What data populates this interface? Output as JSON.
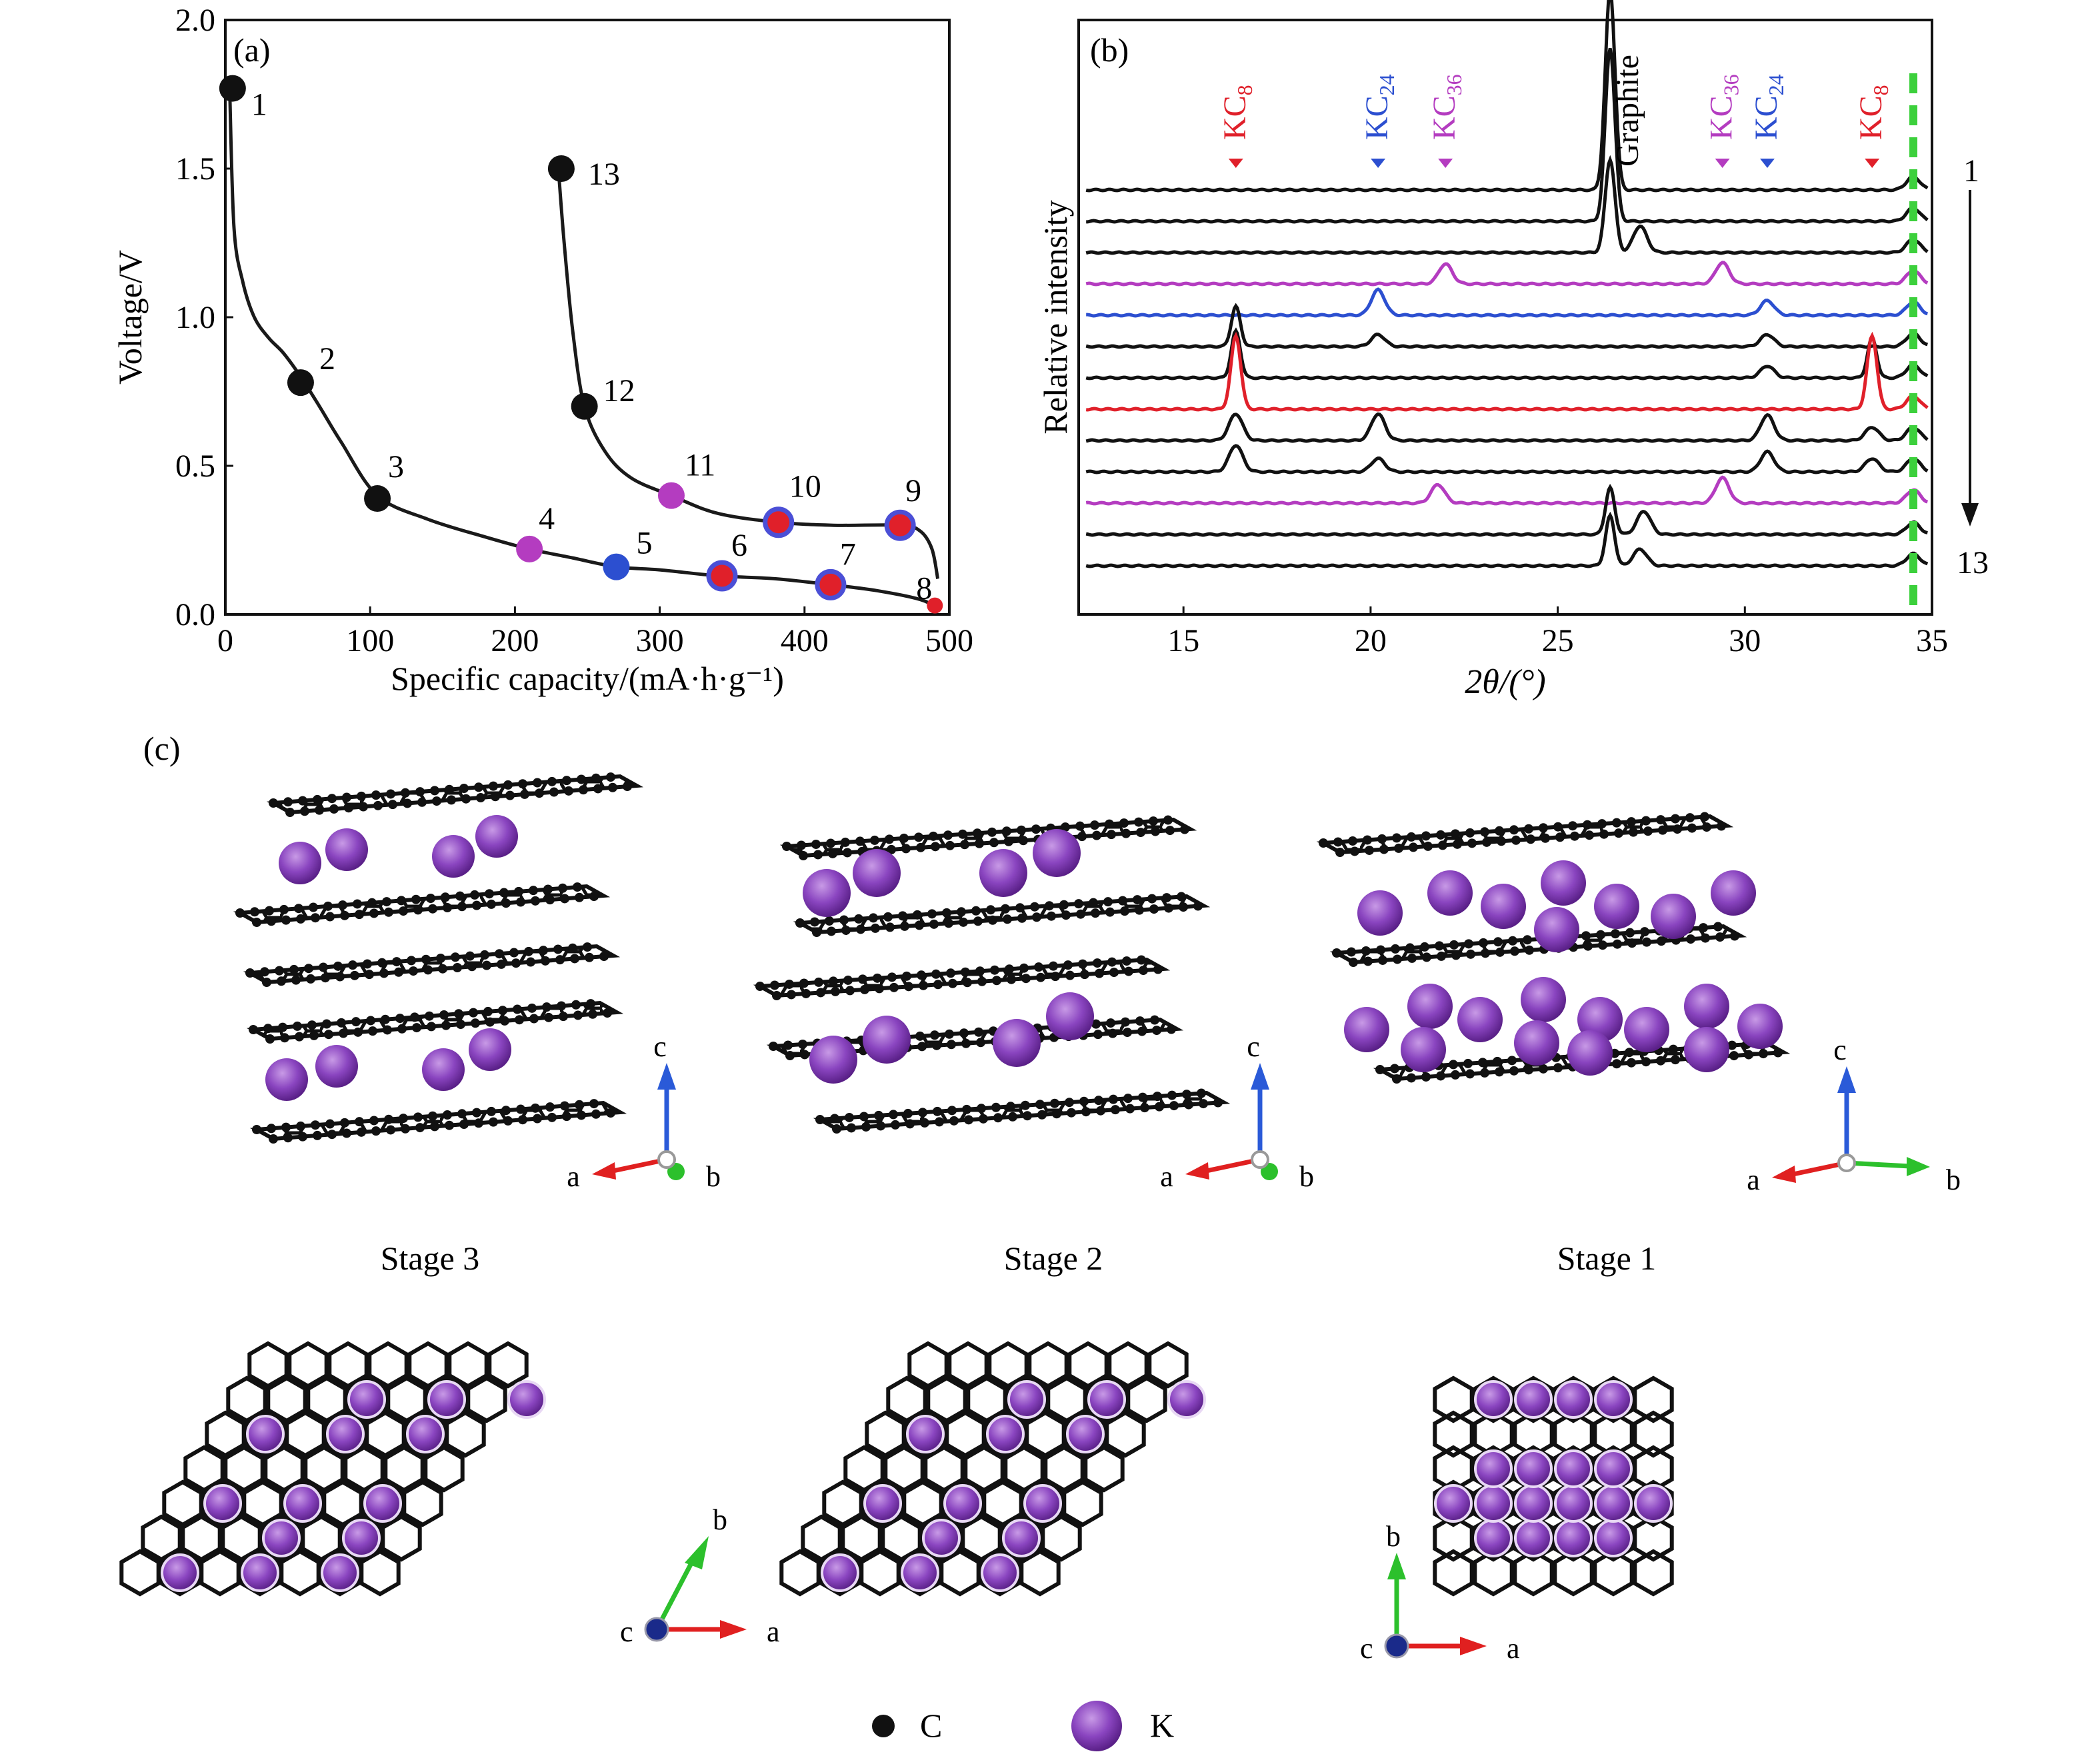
{
  "panel_labels": {
    "a": "(a)",
    "b": "(b)",
    "c": "(c)"
  },
  "colors": {
    "curve": "#1a1a1a",
    "point_black": "#111111",
    "magenta": "#b43cc0",
    "blue": "#2c4fd0",
    "red": "#e0202a",
    "ring_blue": "#4b4fd6",
    "green_dash": "#3cd03c",
    "k_atom": "#8a45c0",
    "axis_c": "#2a5ad8",
    "axis_a": "#e02020",
    "axis_b": "#2cc02c"
  },
  "chart_data": [
    {
      "type": "line",
      "panel": "(a)",
      "xlabel": "Specific capacity/(mA·h·g⁻¹)",
      "ylabel": "Voltage/V",
      "xlim": [
        0,
        500
      ],
      "ylim": [
        0.0,
        2.0
      ],
      "xticks": [
        "0",
        "100",
        "200",
        "300",
        "400",
        "500"
      ],
      "yticks": [
        "0.0",
        "0.5",
        "1.0",
        "1.5",
        "2.0"
      ],
      "grid": false,
      "discharge_curve": {
        "x": [
          3,
          6,
          12,
          20,
          30,
          40,
          52,
          65,
          80,
          105,
          140,
          180,
          210,
          240,
          270,
          300,
          340,
          380,
          418,
          450,
          480,
          492
        ],
        "y": [
          1.77,
          1.3,
          1.12,
          1.0,
          0.93,
          0.88,
          0.8,
          0.7,
          0.58,
          0.4,
          0.32,
          0.26,
          0.22,
          0.19,
          0.16,
          0.15,
          0.13,
          0.12,
          0.1,
          0.08,
          0.05,
          0.02
        ]
      },
      "charge_curve": {
        "x": [
          230,
          234,
          240,
          248,
          262,
          280,
          308,
          340,
          382,
          420,
          466,
          480,
          488,
          492
        ],
        "y": [
          1.5,
          1.25,
          0.95,
          0.7,
          0.55,
          0.46,
          0.4,
          0.34,
          0.31,
          0.3,
          0.3,
          0.28,
          0.22,
          0.12
        ]
      },
      "points": [
        {
          "label": "1",
          "x": 5,
          "y": 1.77,
          "color": "black"
        },
        {
          "label": "2",
          "x": 52,
          "y": 0.78,
          "color": "black"
        },
        {
          "label": "3",
          "x": 105,
          "y": 0.39,
          "color": "black"
        },
        {
          "label": "4",
          "x": 210,
          "y": 0.22,
          "color": "magenta"
        },
        {
          "label": "5",
          "x": 270,
          "y": 0.16,
          "color": "blue"
        },
        {
          "label": "6",
          "x": 343,
          "y": 0.13,
          "color": "red-ring"
        },
        {
          "label": "7",
          "x": 418,
          "y": 0.1,
          "color": "red-ring"
        },
        {
          "label": "8",
          "x": 490,
          "y": 0.03,
          "color": "red"
        },
        {
          "label": "9",
          "x": 466,
          "y": 0.3,
          "color": "red-ring"
        },
        {
          "label": "10",
          "x": 382,
          "y": 0.31,
          "color": "red-ring"
        },
        {
          "label": "11",
          "x": 308,
          "y": 0.4,
          "color": "magenta"
        },
        {
          "label": "12",
          "x": 248,
          "y": 0.7,
          "color": "black"
        },
        {
          "label": "13",
          "x": 232,
          "y": 1.5,
          "color": "black"
        }
      ]
    },
    {
      "type": "line",
      "panel": "(b)",
      "xlabel": "2θ/(°)",
      "ylabel": "Relative intensity",
      "xlim": [
        12.2,
        35
      ],
      "xticks": [
        "15",
        "20",
        "25",
        "30",
        "35"
      ],
      "grid": false,
      "scan_start_label": "1",
      "scan_end_label": "13",
      "reflection_labels": [
        {
          "text": "KC",
          "sub": "8",
          "x": 16.4,
          "color": "red"
        },
        {
          "text": "KC",
          "sub": "24",
          "x": 20.2,
          "color": "blue"
        },
        {
          "text": "KC",
          "sub": "36",
          "x": 22.0,
          "color": "magenta"
        },
        {
          "text": "Graphite",
          "sub": "",
          "x": 26.4,
          "color": "black"
        },
        {
          "text": "KC",
          "sub": "36",
          "x": 29.4,
          "color": "magenta"
        },
        {
          "text": "KC",
          "sub": "24",
          "x": 30.6,
          "color": "blue"
        },
        {
          "text": "KC",
          "sub": "8",
          "x": 33.4,
          "color": "red"
        }
      ],
      "series": [
        {
          "peaks": [
            [
              26.4,
              300
            ],
            [
              34.5,
              20
            ]
          ],
          "color": "black"
        },
        {
          "peaks": [
            [
              26.4,
              260
            ],
            [
              34.5,
              20
            ]
          ],
          "color": "black"
        },
        {
          "peaks": [
            [
              26.4,
              140
            ],
            [
              27.2,
              40
            ],
            [
              34.5,
              20
            ]
          ],
          "color": "black"
        },
        {
          "peaks": [
            [
              22.0,
              30
            ],
            [
              29.4,
              32
            ],
            [
              34.5,
              20
            ]
          ],
          "color": "magenta"
        },
        {
          "peaks": [
            [
              20.2,
              38
            ],
            [
              30.6,
              22
            ],
            [
              34.5,
              20
            ]
          ],
          "color": "blue"
        },
        {
          "peaks": [
            [
              16.4,
              60
            ],
            [
              20.2,
              18
            ],
            [
              30.6,
              18
            ],
            [
              34.5,
              20
            ]
          ],
          "color": "black"
        },
        {
          "peaks": [
            [
              16.4,
              70
            ],
            [
              30.6,
              18
            ],
            [
              33.4,
              60
            ],
            [
              34.5,
              20
            ]
          ],
          "color": "black"
        },
        {
          "peaks": [
            [
              16.4,
              110
            ],
            [
              33.4,
              110
            ],
            [
              34.5,
              20
            ]
          ],
          "color": "red"
        },
        {
          "peaks": [
            [
              16.4,
              40
            ],
            [
              20.2,
              40
            ],
            [
              30.6,
              38
            ],
            [
              33.4,
              20
            ],
            [
              34.5,
              20
            ]
          ],
          "color": "black"
        },
        {
          "peaks": [
            [
              16.4,
              40
            ],
            [
              20.2,
              20
            ],
            [
              30.6,
              30
            ],
            [
              33.4,
              20
            ],
            [
              34.5,
              20
            ]
          ],
          "color": "black"
        },
        {
          "peaks": [
            [
              21.8,
              28
            ],
            [
              29.4,
              38
            ],
            [
              34.5,
              20
            ]
          ],
          "color": "magenta"
        },
        {
          "peaks": [
            [
              26.4,
              70
            ],
            [
              27.3,
              35
            ],
            [
              34.5,
              18
            ]
          ],
          "color": "black"
        },
        {
          "peaks": [
            [
              26.4,
              75
            ],
            [
              27.2,
              25
            ],
            [
              34.5,
              18
            ]
          ],
          "color": "black"
        }
      ]
    }
  ],
  "panel_c": {
    "stages": [
      {
        "title": "Stage 3",
        "axes_3d": [
          "c",
          "a",
          "b"
        ],
        "axes_2d": [
          "c",
          "a",
          "b"
        ]
      },
      {
        "title": "Stage 2",
        "axes_3d": [
          "c",
          "a",
          "b"
        ],
        "axes_2d": [
          "c",
          "a",
          "b"
        ]
      },
      {
        "title": "Stage 1",
        "axes_3d": [
          "c",
          "a",
          "b"
        ],
        "axes_2d": [
          "c",
          "a",
          "b"
        ]
      }
    ],
    "legend": [
      {
        "symbol": "carbon-atom",
        "label": "C"
      },
      {
        "symbol": "potassium-atom",
        "label": "K"
      }
    ]
  }
}
